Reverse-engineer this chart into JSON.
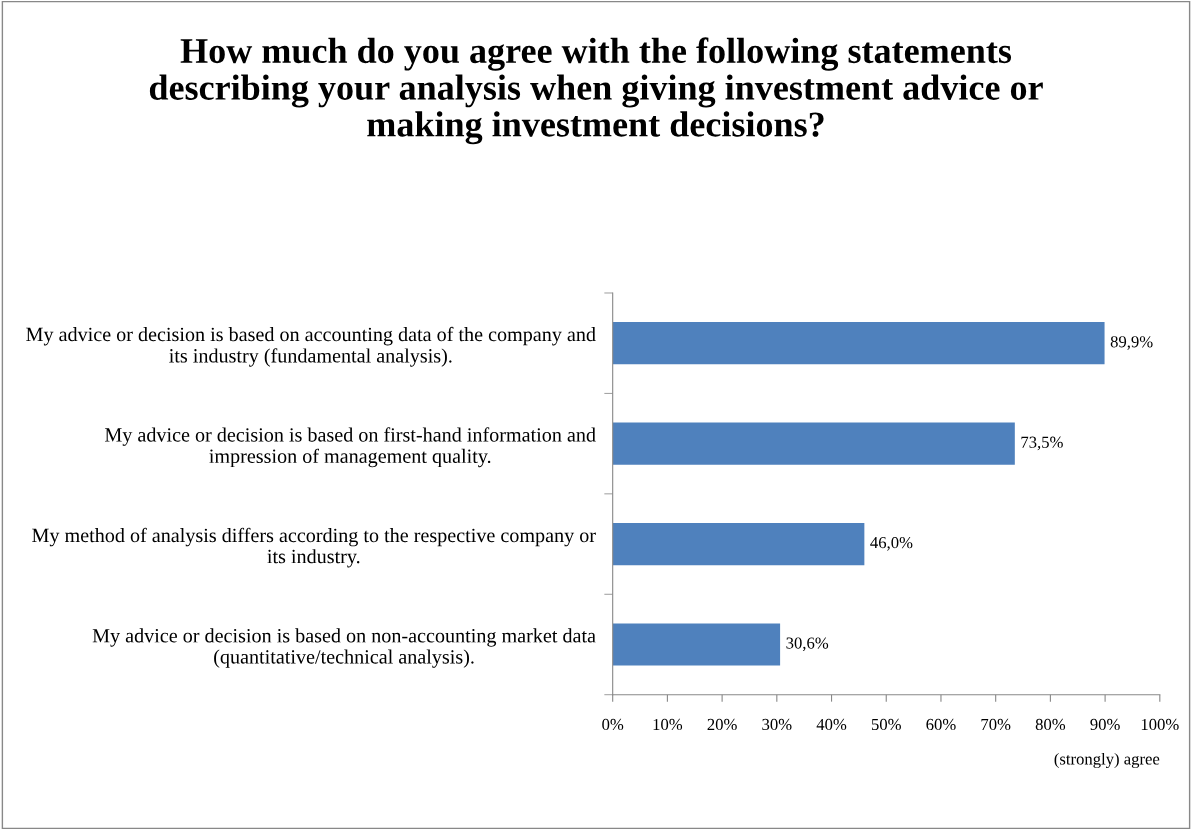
{
  "chart_data": {
    "type": "bar",
    "orientation": "horizontal",
    "title": "How much do you agree with the following statements describing your analysis when giving investment advice or making investment decisions?",
    "xlabel": "(strongly) agree",
    "categories": [
      "My advice or decision is based on accounting data of the company and its industry (fundamental analysis).",
      "My advice or decision is based on first-hand information and impression of management quality.",
      "My method of analysis differs according to the respective company or its industry.",
      "My advice or decision is based on non-accounting market data (quantitative/technical analysis)."
    ],
    "values": [
      89.9,
      73.5,
      46.0,
      30.6
    ],
    "value_labels": [
      "89,9%",
      "73,5%",
      "46,0%",
      "30,6%"
    ],
    "color": "#4f81bd",
    "xlim": [
      0,
      100
    ],
    "xticks": [
      {
        "value": 0,
        "label": "0%"
      },
      {
        "value": 10,
        "label": "10%"
      },
      {
        "value": 20,
        "label": "20%"
      },
      {
        "value": 30,
        "label": "30%"
      },
      {
        "value": 40,
        "label": "40%"
      },
      {
        "value": 50,
        "label": "50%"
      },
      {
        "value": 60,
        "label": "60%"
      },
      {
        "value": 70,
        "label": "70%"
      },
      {
        "value": 80,
        "label": "80%"
      },
      {
        "value": 90,
        "label": "90%"
      },
      {
        "value": 100,
        "label": "100%"
      }
    ],
    "grid": false
  }
}
